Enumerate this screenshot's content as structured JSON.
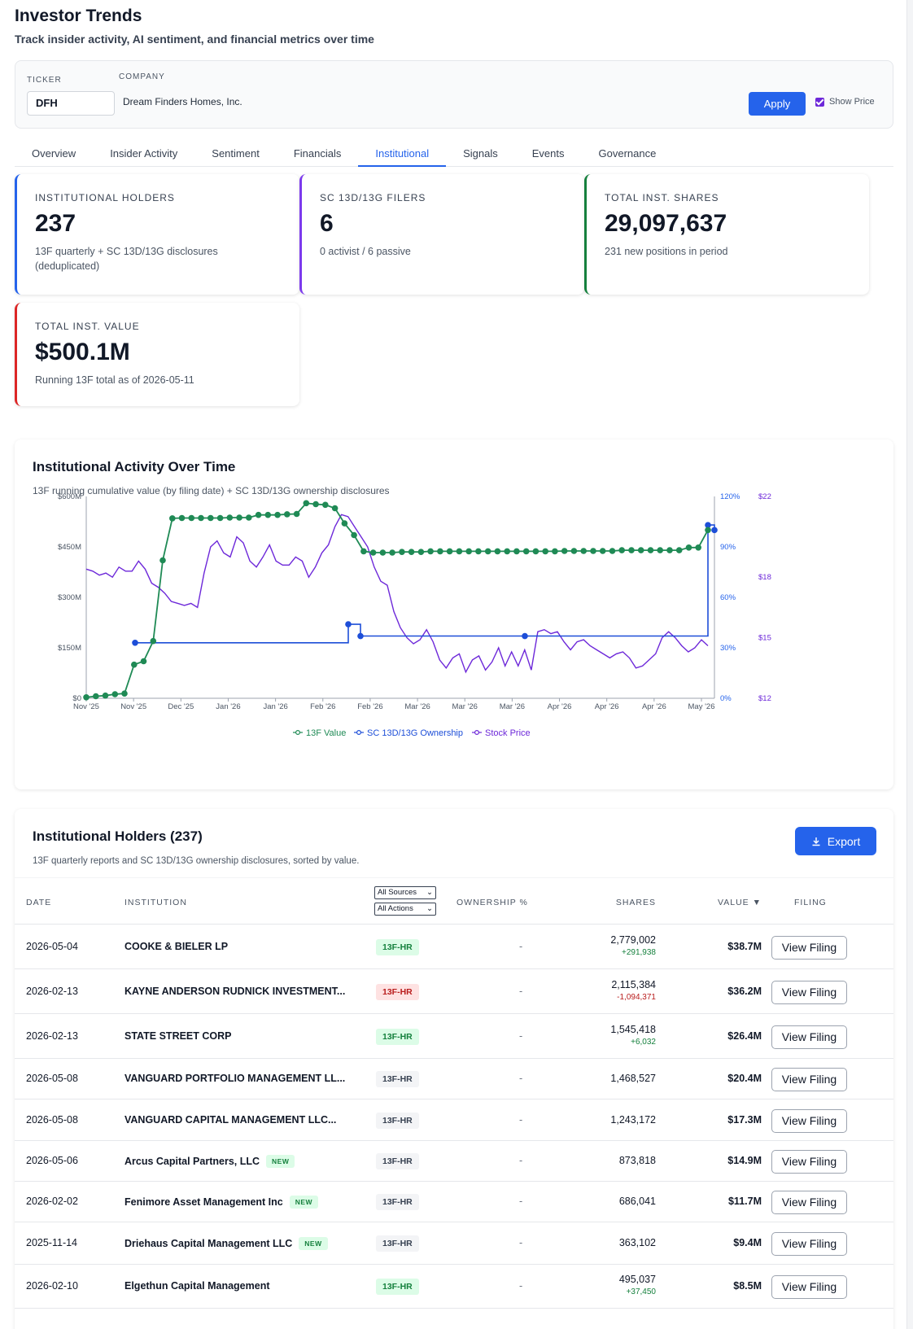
{
  "header": {
    "title": "Investor Trends",
    "subtitle": "Track insider activity, AI sentiment, and financial metrics over time"
  },
  "filters": {
    "ticker_label": "TICKER",
    "ticker_value": "DFH",
    "company_label": "COMPANY",
    "company_value": "Dream Finders Homes, Inc.",
    "apply_label": "Apply",
    "show_price_label": "Show Price",
    "show_price_checked": true
  },
  "tabs": [
    "Overview",
    "Insider Activity",
    "Sentiment",
    "Financials",
    "Institutional",
    "Signals",
    "Events",
    "Governance"
  ],
  "active_tab": "Institutional",
  "stats": [
    {
      "label": "INSTITUTIONAL HOLDERS",
      "value": "237",
      "note": "13F quarterly + SC 13D/13G disclosures (deduplicated)",
      "color": "#2563eb"
    },
    {
      "label": "SC 13D/13G FILERS",
      "value": "6",
      "note": "0 activist / 6 passive",
      "color": "#7c3aed"
    },
    {
      "label": "TOTAL INST. SHARES",
      "value": "29,097,637",
      "note": "231 new positions in period",
      "color": "#15803d"
    },
    {
      "label": "TOTAL INST. VALUE",
      "value": "$500.1M",
      "note": "Running 13F total as of 2026-05-11",
      "color": "#dc2626"
    }
  ],
  "chart": {
    "title": "Institutional Activity Over Time",
    "subtitle": "13F running cumulative value (by filing date) + SC 13D/13G ownership disclosures",
    "legend": [
      "13F Value",
      "SC 13D/13G Ownership",
      "Stock Price"
    ]
  },
  "chart_data": {
    "type": "line",
    "x_ticks": [
      "Nov '25",
      "Nov '25",
      "Dec '25",
      "Jan '26",
      "Jan '26",
      "Feb '26",
      "Feb '26",
      "Mar '26",
      "Mar '26",
      "Mar '26",
      "Apr '26",
      "Apr '26",
      "Apr '26",
      "May '26"
    ],
    "y_left_ticks": [
      "$0",
      "$150M",
      "$300M",
      "$450M",
      "$600M"
    ],
    "y_left_range": [
      0,
      600
    ],
    "y_right1_ticks": [
      "0%",
      "30%",
      "60%",
      "90%",
      "120%"
    ],
    "y_right1_range": [
      0,
      120
    ],
    "y_right2_ticks": [
      "$12",
      "$15",
      "$18",
      "$22"
    ],
    "y_right2_range": [
      12,
      22
    ],
    "colors": {
      "value13f": "#1f8a55",
      "ownership": "#1d4ed8",
      "price": "#6d28d9"
    },
    "series": [
      {
        "name": "13F Value",
        "unit": "$M",
        "values": [
          3,
          6,
          8,
          12,
          14,
          100,
          110,
          170,
          410,
          535,
          536,
          536,
          536,
          536,
          536,
          537,
          537,
          537,
          545,
          545,
          545,
          547,
          548,
          580,
          577,
          575,
          565,
          520,
          485,
          437,
          433,
          433,
          433,
          435,
          435,
          435,
          437,
          437,
          437,
          437,
          437,
          437,
          437,
          437,
          437,
          437,
          437,
          437,
          437,
          437,
          438,
          438,
          438,
          438,
          438,
          438,
          440,
          440,
          440,
          440,
          440,
          440,
          440,
          448,
          448,
          500
        ]
      },
      {
        "name": "SC 13D/13G Ownership",
        "unit": "%",
        "values": [
          33,
          33,
          33,
          44,
          37,
          37,
          37,
          37,
          37,
          103,
          100
        ]
      },
      {
        "name": "Stock Price",
        "unit": "$",
        "values": [
          18.4,
          18.3,
          18.1,
          18.2,
          18.0,
          18.5,
          18.3,
          18.3,
          18.8,
          18.4,
          17.7,
          17.5,
          17.2,
          16.8,
          16.7,
          16.6,
          16.7,
          16.5,
          18.2,
          19.5,
          19.8,
          19.2,
          19.0,
          20.0,
          19.7,
          18.8,
          18.5,
          19.0,
          19.6,
          18.8,
          18.6,
          18.6,
          19.0,
          18.8,
          18.0,
          18.5,
          19.2,
          19.6,
          20.5,
          21.1,
          21.0,
          20.5,
          20.0,
          19.5,
          18.5,
          17.8,
          17.6,
          16.3,
          15.5,
          15.0,
          14.7,
          14.9,
          15.4,
          14.8,
          13.9,
          13.5,
          14.0,
          14.2,
          13.3,
          13.9,
          14.1,
          13.4,
          13.8,
          14.5,
          13.6,
          14.3,
          13.6,
          14.4,
          13.4,
          15.3,
          15.4,
          15.2,
          15.3,
          14.8,
          14.4,
          14.8,
          14.9,
          14.6,
          14.4,
          14.2,
          14.0,
          14.2,
          14.3,
          14.0,
          13.5,
          13.6,
          13.9,
          14.2,
          15.0,
          15.3,
          15.0,
          14.6,
          14.3,
          14.5,
          14.9,
          14.6
        ]
      }
    ]
  },
  "holders": {
    "title": "Institutional Holders (237)",
    "subtitle": "13F quarterly reports and SC 13D/13G ownership disclosures, sorted by value.",
    "export_label": "Export",
    "columns": {
      "date": "DATE",
      "institution": "INSTITUTION",
      "sources_select": "All Sources",
      "actions_select": "All Actions",
      "ownership": "OWNERSHIP %",
      "shares": "SHARES",
      "value": "VALUE ▼",
      "filing": "FILING"
    },
    "new_badge": "NEW",
    "view_label": "View Filing",
    "rows": [
      {
        "date": "2026-05-04",
        "institution": "COOKE & BIELER LP",
        "is_new": false,
        "type": "13F-HR",
        "type_tone": "green",
        "ownership": "-",
        "shares": "2,779,002",
        "change": "+291,938",
        "change_tone": "pos",
        "value": "$38.7M"
      },
      {
        "date": "2026-02-13",
        "institution": "KAYNE ANDERSON RUDNICK INVESTMENT...",
        "is_new": false,
        "type": "13F-HR",
        "type_tone": "red",
        "ownership": "-",
        "shares": "2,115,384",
        "change": "-1,094,371",
        "change_tone": "neg",
        "value": "$36.2M"
      },
      {
        "date": "2026-02-13",
        "institution": "STATE STREET CORP",
        "is_new": false,
        "type": "13F-HR",
        "type_tone": "green",
        "ownership": "-",
        "shares": "1,545,418",
        "change": "+6,032",
        "change_tone": "pos",
        "value": "$26.4M"
      },
      {
        "date": "2026-05-08",
        "institution": "VANGUARD PORTFOLIO MANAGEMENT LL...",
        "is_new": false,
        "type": "13F-HR",
        "type_tone": "gray",
        "ownership": "-",
        "shares": "1,468,527",
        "change": "",
        "change_tone": "",
        "value": "$20.4M"
      },
      {
        "date": "2026-05-08",
        "institution": "VANGUARD CAPITAL MANAGEMENT LLC...",
        "is_new": false,
        "type": "13F-HR",
        "type_tone": "gray",
        "ownership": "-",
        "shares": "1,243,172",
        "change": "",
        "change_tone": "",
        "value": "$17.3M"
      },
      {
        "date": "2026-05-06",
        "institution": "Arcus Capital Partners, LLC",
        "is_new": true,
        "type": "13F-HR",
        "type_tone": "gray",
        "ownership": "-",
        "shares": "873,818",
        "change": "",
        "change_tone": "",
        "value": "$14.9M"
      },
      {
        "date": "2026-02-02",
        "institution": "Fenimore Asset Management Inc",
        "is_new": true,
        "type": "13F-HR",
        "type_tone": "gray",
        "ownership": "-",
        "shares": "686,041",
        "change": "",
        "change_tone": "",
        "value": "$11.7M"
      },
      {
        "date": "2025-11-14",
        "institution": "Driehaus Capital Management LLC",
        "is_new": true,
        "type": "13F-HR",
        "type_tone": "gray",
        "ownership": "-",
        "shares": "363,102",
        "change": "",
        "change_tone": "",
        "value": "$9.4M"
      },
      {
        "date": "2026-02-10",
        "institution": "Elgethun Capital Management",
        "is_new": false,
        "type": "13F-HR",
        "type_tone": "green",
        "ownership": "-",
        "shares": "495,037",
        "change": "+37,450",
        "change_tone": "pos",
        "value": "$8.5M"
      }
    ]
  }
}
